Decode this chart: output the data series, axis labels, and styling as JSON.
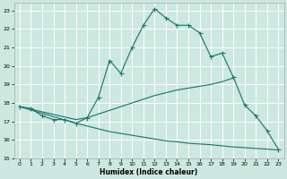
{
  "xlabel": "Humidex (Indice chaleur)",
  "bg_color": "#cce8e0",
  "grid_color": "#ffffff",
  "line_color": "#1e7a6e",
  "xlim": [
    -0.5,
    23.5
  ],
  "ylim": [
    15,
    23.4
  ],
  "xticks": [
    0,
    1,
    2,
    3,
    4,
    5,
    6,
    7,
    8,
    9,
    10,
    11,
    12,
    13,
    14,
    15,
    16,
    17,
    18,
    19,
    20,
    21,
    22,
    23
  ],
  "yticks": [
    15,
    16,
    17,
    18,
    19,
    20,
    21,
    22,
    23
  ],
  "line1_x": [
    0,
    1,
    2,
    3,
    4,
    5,
    6,
    7,
    8,
    9,
    10,
    11,
    12,
    13,
    14,
    15,
    16,
    17,
    18,
    19,
    20,
    21,
    22,
    23
  ],
  "line1_y": [
    17.8,
    17.7,
    17.3,
    17.1,
    17.1,
    16.9,
    17.2,
    18.3,
    20.3,
    19.6,
    21.0,
    22.2,
    23.1,
    22.6,
    22.2,
    22.2,
    21.8,
    20.5,
    20.7,
    19.4,
    17.9,
    17.3,
    16.5,
    15.5
  ],
  "line2_x": [
    0,
    5,
    6,
    7,
    8,
    9,
    10,
    11,
    12,
    13,
    14,
    15,
    16,
    17,
    18,
    19
  ],
  "line2_y": [
    17.8,
    17.1,
    17.2,
    17.4,
    17.6,
    17.8,
    18.0,
    18.2,
    18.4,
    18.55,
    18.7,
    18.8,
    18.9,
    19.0,
    19.15,
    19.35
  ],
  "line3_x": [
    0,
    5,
    6,
    7,
    8,
    9,
    10,
    11,
    12,
    13,
    14,
    15,
    16,
    17,
    18,
    19,
    20,
    21,
    22,
    23
  ],
  "line3_y": [
    17.8,
    16.9,
    16.75,
    16.6,
    16.45,
    16.35,
    16.25,
    16.15,
    16.05,
    15.95,
    15.9,
    15.82,
    15.78,
    15.74,
    15.68,
    15.62,
    15.58,
    15.54,
    15.5,
    15.45
  ]
}
